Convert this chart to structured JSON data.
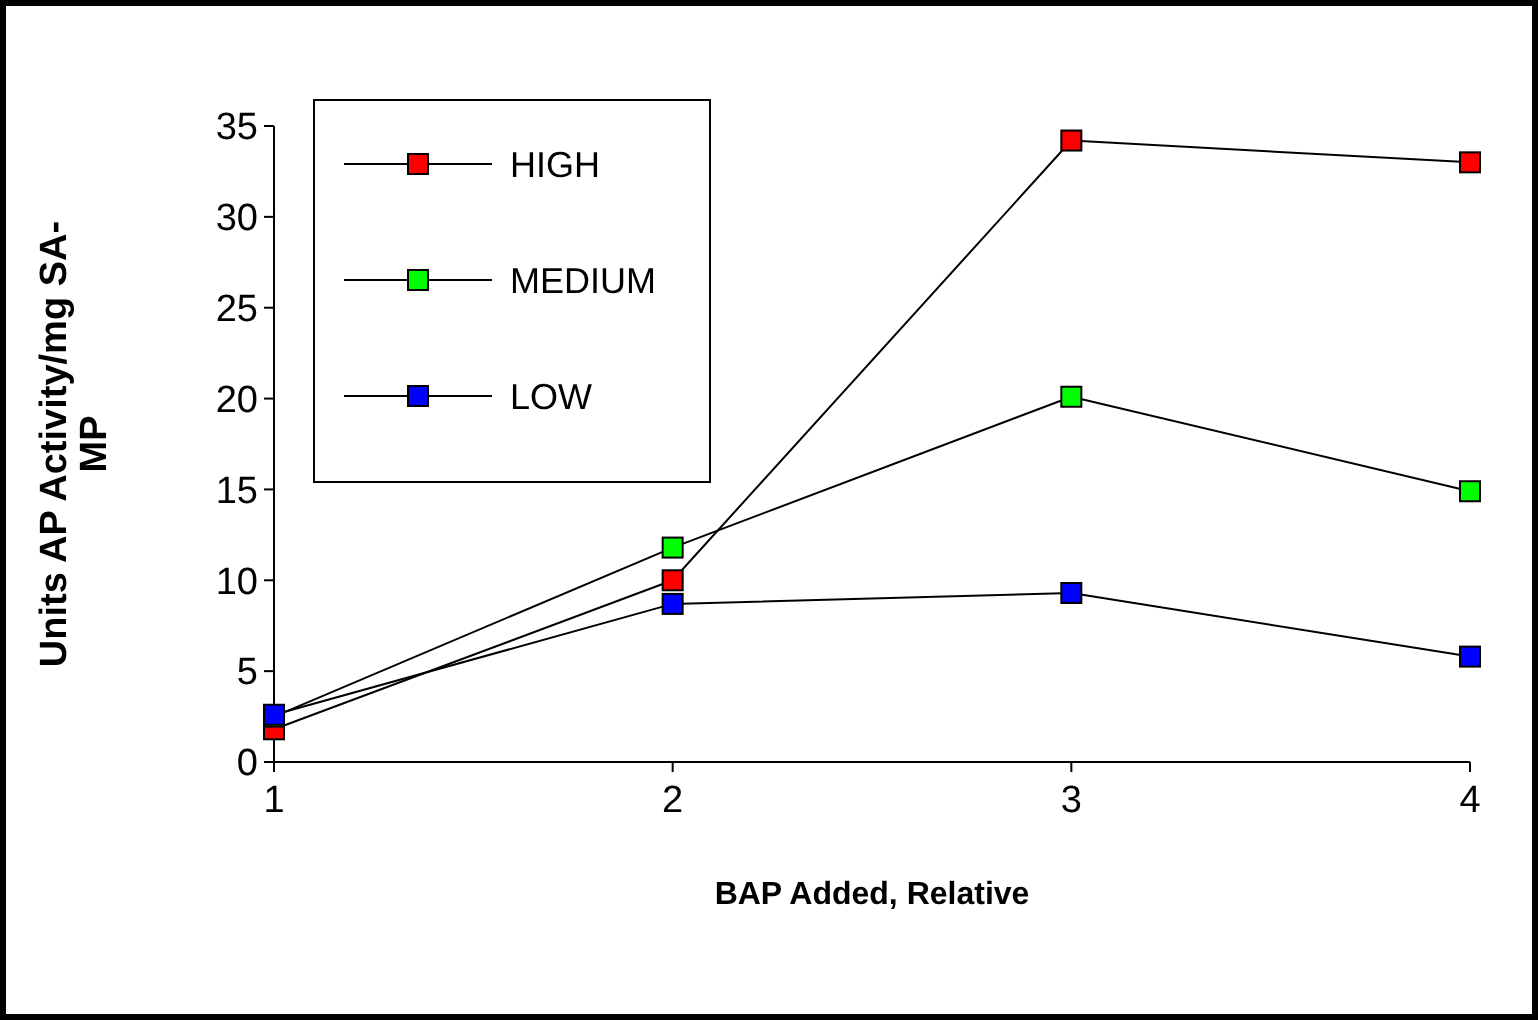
{
  "chart_data": {
    "type": "line",
    "xlabel": "BAP Added, Relative",
    "ylabel": "Units AP Activity/mg SA-\nMP",
    "x": [
      1,
      2,
      3,
      4
    ],
    "xlim": [
      1,
      4
    ],
    "xticks": [
      1,
      2,
      3,
      4
    ],
    "ylim": [
      0,
      35
    ],
    "yticks": [
      0,
      5,
      10,
      15,
      20,
      25,
      30,
      35
    ],
    "grid": false,
    "legend": "top left",
    "marker": "square",
    "line_style": "solid",
    "series": [
      {
        "name": "HIGH",
        "color": "#ff0000",
        "values": [
          1.8,
          10.0,
          34.2,
          33.0
        ]
      },
      {
        "name": "MEDIUM",
        "color": "#00ff00",
        "values": [
          2.5,
          11.8,
          20.1,
          14.9
        ]
      },
      {
        "name": "LOW",
        "color": "#0000ff",
        "values": [
          2.6,
          8.7,
          9.3,
          5.8
        ]
      }
    ]
  }
}
